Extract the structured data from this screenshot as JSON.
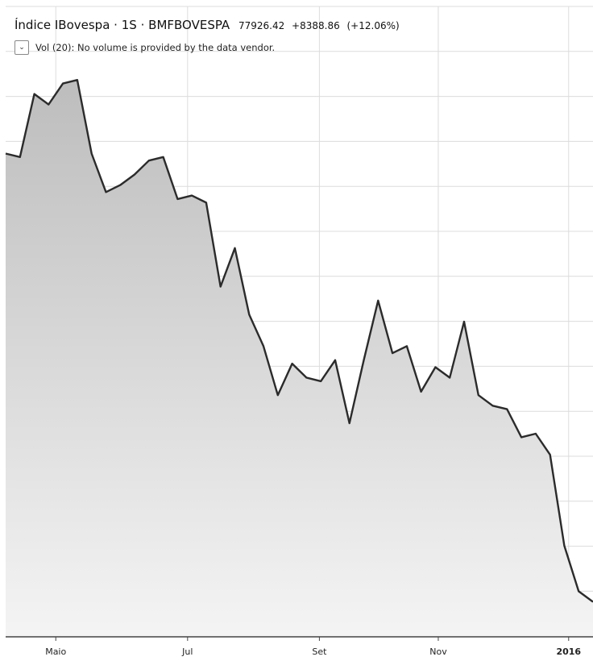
{
  "header": {
    "symbol": "Índice IBovespa",
    "interval": "1S",
    "exchange": "BMFBOVESPA",
    "separator": "·",
    "last_price": "77926.42",
    "change_abs": "+8388.86",
    "change_pct": "(+12.06%)"
  },
  "volume": {
    "collapse_icon": "chevron-down-icon",
    "label": "Vol (20): No volume is provided by the data vendor."
  },
  "colors": {
    "line": "#2b2b2b",
    "area_top": "#bdbdbd",
    "area_bottom": "#f4f4f4",
    "grid": "#dcdcdc",
    "axis": "#444444"
  },
  "chart_data": {
    "type": "area",
    "title": "Índice IBovespa · 1S · BMFBOVESPA",
    "xlabel": "",
    "ylabel": "",
    "x_tick_labels": [
      {
        "label": "Maio",
        "index": 3.5
      },
      {
        "label": "Jul",
        "index": 12.7
      },
      {
        "label": "Set",
        "index": 21.9
      },
      {
        "label": "Nov",
        "index": 30.2
      },
      {
        "label": "2016",
        "index": 39.3
      }
    ],
    "ylim": [
      75.9,
      93.9
    ],
    "grid": true,
    "legend": "none",
    "series": [
      {
        "values": [
          89.7,
          89.6,
          91.4,
          91.1,
          91.7,
          91.8,
          89.7,
          88.6,
          88.8,
          89.1,
          89.5,
          89.6,
          88.4,
          88.5,
          88.3,
          85.9,
          87.0,
          85.1,
          84.2,
          82.8,
          83.7,
          83.3,
          83.2,
          83.8,
          82.0,
          83.8,
          85.5,
          84.0,
          84.2,
          82.9,
          83.6,
          83.3,
          84.9,
          82.8,
          82.5,
          82.4,
          81.6,
          81.7,
          81.1,
          78.5,
          77.2,
          76.9
        ]
      }
    ]
  }
}
